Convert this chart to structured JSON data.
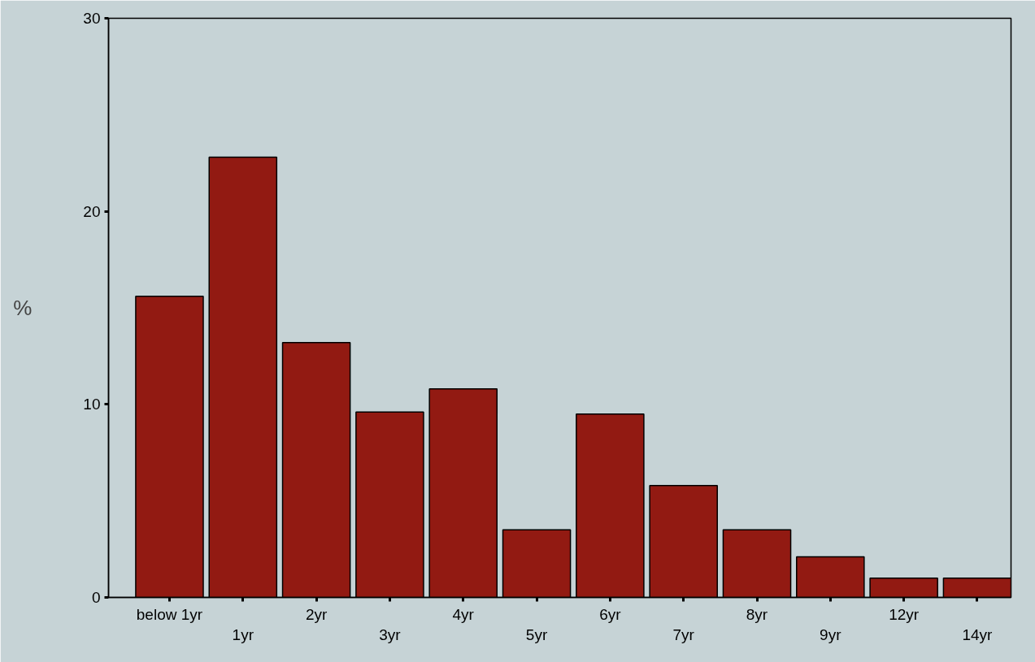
{
  "chart_data": {
    "type": "bar",
    "ylabel": "%",
    "categories": [
      "below 1yr",
      "1yr",
      "2yr",
      "3yr",
      "4yr",
      "5yr",
      "6yr",
      "7yr",
      "8yr",
      "9yr",
      "12yr",
      "14yr"
    ],
    "values": [
      15.6,
      22.8,
      13.2,
      9.6,
      10.8,
      3.5,
      9.5,
      5.8,
      3.5,
      2.1,
      1.0,
      1.0
    ],
    "color": "#921a12",
    "ylim": [
      0,
      30
    ],
    "yticks": [
      0,
      10,
      20,
      30
    ],
    "grid": false
  }
}
